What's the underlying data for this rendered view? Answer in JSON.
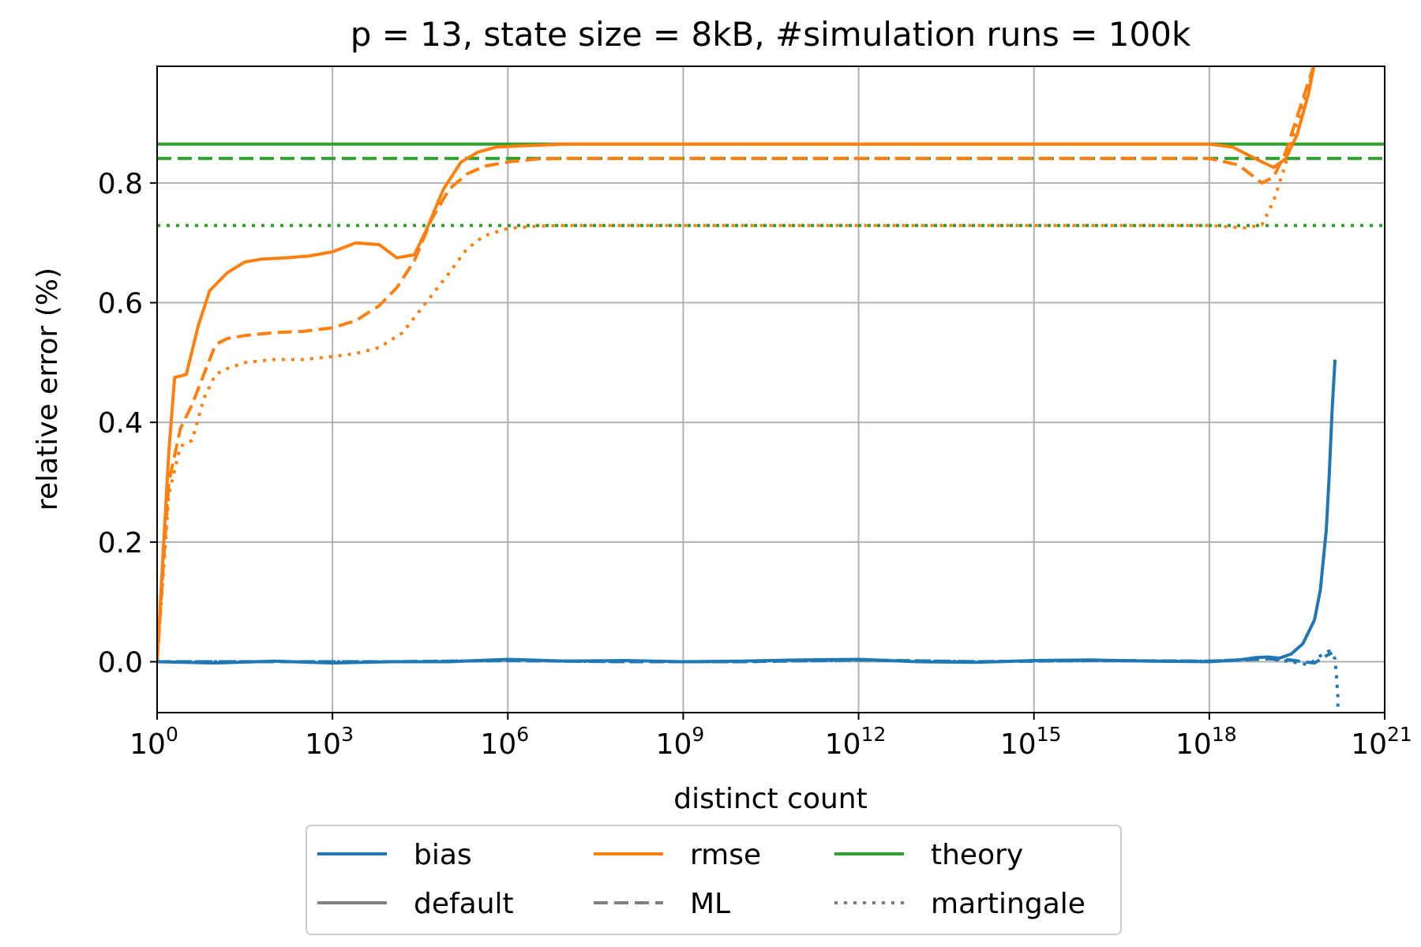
{
  "chart_data": {
    "type": "line",
    "title": "p = 13, state size = 8kB, #simulation runs = 100k",
    "xlabel": "distinct count",
    "ylabel": "relative error (%)",
    "xscale": "log",
    "xlim": [
      1,
      1e+21
    ],
    "ylim": [
      -0.085,
      0.995
    ],
    "grid": true,
    "x_ticks": [
      {
        "base": "10",
        "exp": "0"
      },
      {
        "base": "10",
        "exp": "3"
      },
      {
        "base": "10",
        "exp": "6"
      },
      {
        "base": "10",
        "exp": "9"
      },
      {
        "base": "10",
        "exp": "12"
      },
      {
        "base": "10",
        "exp": "15"
      },
      {
        "base": "10",
        "exp": "18"
      },
      {
        "base": "10",
        "exp": "21"
      }
    ],
    "y_ticks": [
      "0.0",
      "0.2",
      "0.4",
      "0.6",
      "0.8"
    ],
    "y_tick_values": [
      0.0,
      0.2,
      0.4,
      0.6,
      0.8
    ],
    "colors": {
      "bias": "#1f77b4",
      "rmse": "#ff7f0e",
      "theory": "#2ca02c",
      "legend_gray": "#808080",
      "grid": "#b0b0b0"
    },
    "legend": {
      "placement": "below plot, centered, 3 columns",
      "entries": [
        {
          "label": "bias",
          "color": "#1f77b4",
          "style": "solid"
        },
        {
          "label": "rmse",
          "color": "#ff7f0e",
          "style": "solid"
        },
        {
          "label": "theory",
          "color": "#2ca02c",
          "style": "solid"
        },
        {
          "label": "default",
          "color": "#808080",
          "style": "solid"
        },
        {
          "label": "ML",
          "color": "#808080",
          "style": "dashed"
        },
        {
          "label": "martingale",
          "color": "#808080",
          "style": "dotted"
        }
      ]
    },
    "theory_lines": [
      {
        "estimator": "default",
        "style": "solid",
        "value": 0.865
      },
      {
        "estimator": "ML",
        "style": "dashed",
        "value": 0.841
      },
      {
        "estimator": "martingale",
        "style": "dotted",
        "value": 0.729
      }
    ],
    "series": [
      {
        "metric": "rmse",
        "estimator": "default",
        "style": "solid",
        "color": "#ff7f0e",
        "x_log10": [
          0,
          0.2,
          0.3,
          0.5,
          0.7,
          0.9,
          1.2,
          1.5,
          1.8,
          2.2,
          2.6,
          3.0,
          3.4,
          3.8,
          4.1,
          4.4,
          4.6,
          4.9,
          5.2,
          5.5,
          5.8,
          6.2,
          7,
          9,
          12,
          15,
          18,
          18.4,
          18.8,
          19.1,
          19.3,
          19.5,
          19.7,
          19.8
        ],
        "values": [
          0.0,
          0.35,
          0.475,
          0.48,
          0.56,
          0.62,
          0.65,
          0.668,
          0.673,
          0.675,
          0.678,
          0.685,
          0.7,
          0.697,
          0.675,
          0.68,
          0.72,
          0.79,
          0.835,
          0.852,
          0.86,
          0.862,
          0.865,
          0.865,
          0.865,
          0.865,
          0.865,
          0.86,
          0.84,
          0.826,
          0.84,
          0.88,
          0.95,
          1.0
        ]
      },
      {
        "metric": "rmse",
        "estimator": "ML",
        "style": "dashed",
        "color": "#ff7f0e",
        "x_log10": [
          0,
          0.2,
          0.4,
          0.6,
          0.8,
          1.0,
          1.2,
          1.5,
          2.0,
          2.5,
          3.0,
          3.4,
          3.8,
          4.1,
          4.4,
          4.7,
          5.0,
          5.3,
          5.6,
          6.0,
          6.5,
          7,
          9,
          12,
          15,
          18,
          18.5,
          18.9,
          19.1,
          19.3,
          19.5,
          19.7,
          19.8
        ],
        "values": [
          0.0,
          0.3,
          0.39,
          0.43,
          0.48,
          0.53,
          0.54,
          0.545,
          0.55,
          0.552,
          0.558,
          0.57,
          0.595,
          0.625,
          0.67,
          0.74,
          0.79,
          0.815,
          0.828,
          0.835,
          0.84,
          0.841,
          0.841,
          0.841,
          0.841,
          0.841,
          0.83,
          0.8,
          0.81,
          0.85,
          0.91,
          0.97,
          1.0
        ]
      },
      {
        "metric": "rmse",
        "estimator": "martingale",
        "style": "dotted",
        "color": "#ff7f0e",
        "x_log10": [
          0,
          0.2,
          0.4,
          0.6,
          0.8,
          1.0,
          1.2,
          1.5,
          2.0,
          2.5,
          3.0,
          3.4,
          3.8,
          4.2,
          4.6,
          5.0,
          5.3,
          5.6,
          6.0,
          6.5,
          7,
          9,
          12,
          15,
          18,
          18.6,
          18.9,
          19.1,
          19.3,
          19.5,
          19.7,
          19.8
        ],
        "values": [
          0.0,
          0.28,
          0.36,
          0.37,
          0.44,
          0.48,
          0.49,
          0.5,
          0.505,
          0.505,
          0.51,
          0.515,
          0.525,
          0.55,
          0.6,
          0.65,
          0.69,
          0.712,
          0.724,
          0.728,
          0.729,
          0.729,
          0.729,
          0.729,
          0.729,
          0.725,
          0.73,
          0.77,
          0.83,
          0.9,
          0.96,
          1.0
        ]
      },
      {
        "metric": "bias",
        "estimator": "default",
        "style": "solid",
        "color": "#1f77b4",
        "x_log10": [
          0,
          1,
          2,
          3,
          4,
          5,
          6,
          7,
          8,
          9,
          10,
          11,
          12,
          13,
          14,
          15,
          16,
          17,
          18,
          18.5,
          18.8,
          19.0,
          19.2,
          19.4,
          19.6,
          19.8,
          19.9,
          20.0,
          20.05,
          20.1,
          20.15
        ],
        "values": [
          0.0,
          -0.002,
          0.001,
          -0.002,
          0.0,
          0.0,
          0.004,
          0.001,
          0.002,
          0.0,
          0.001,
          0.003,
          0.004,
          0.0,
          -0.001,
          0.002,
          0.003,
          0.001,
          0.0,
          0.003,
          0.007,
          0.008,
          0.006,
          0.013,
          0.03,
          0.07,
          0.12,
          0.22,
          0.31,
          0.42,
          0.505
        ]
      },
      {
        "metric": "bias",
        "estimator": "ML",
        "style": "dashed",
        "color": "#1f77b4",
        "x_log10": [
          0,
          2,
          4,
          6,
          8,
          10,
          12,
          14,
          16,
          18,
          19.0,
          19.4,
          19.6,
          19.8,
          20.0,
          20.1
        ],
        "values": [
          0.0,
          0.0,
          0.0,
          0.002,
          0.0,
          0.0,
          0.003,
          0.0,
          0.002,
          0.001,
          0.005,
          0.003,
          0.0,
          -0.002,
          0.01,
          0.015
        ]
      },
      {
        "metric": "bias",
        "estimator": "martingale",
        "style": "dotted",
        "color": "#1f77b4",
        "x_log10": [
          0,
          2,
          4,
          6,
          8,
          10,
          12,
          14,
          16,
          18,
          19.0,
          19.4,
          19.7,
          19.9,
          20.05,
          20.15,
          20.18,
          20.2,
          20.2
        ],
        "values": [
          0.0,
          0.0,
          0.0,
          0.002,
          0.0,
          0.0,
          0.003,
          0.0,
          0.002,
          0.001,
          0.005,
          0.0,
          -0.005,
          0.01,
          0.018,
          0.005,
          -0.03,
          -0.06,
          -0.085
        ]
      }
    ]
  }
}
